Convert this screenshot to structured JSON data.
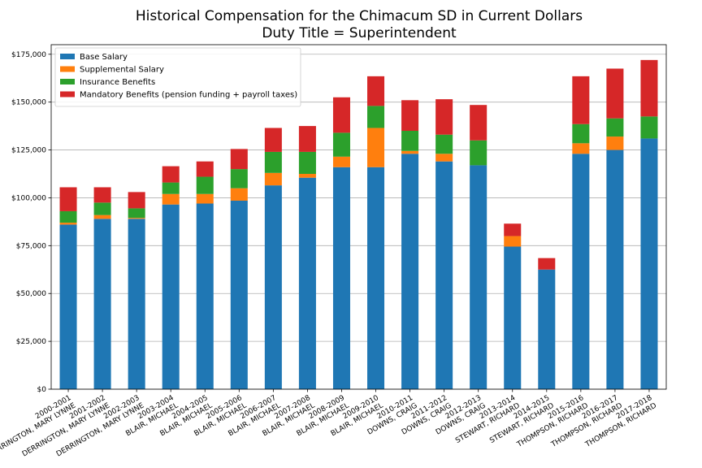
{
  "chart_data": {
    "type": "bar",
    "stacked": true,
    "title": "Historical Compensation for the Chimacum SD in Current Dollars",
    "subtitle": "Duty Title = Superintendent",
    "xlabel": "",
    "ylabel": "",
    "ylim": [
      0,
      180000
    ],
    "yticks": [
      "$0",
      "$25,000",
      "$50,000",
      "$75,000",
      "$100,000",
      "$125,000",
      "$150,000",
      "$175,000"
    ],
    "ytick_values": [
      0,
      25000,
      50000,
      75000,
      100000,
      125000,
      150000,
      175000
    ],
    "grid": "horizontal",
    "legend_position": "top-left",
    "categories": [
      [
        "2000-2001",
        "DERRINGTON, MARY LYNNE"
      ],
      [
        "2001-2002",
        "DERRINGTON, MARY LYNNE"
      ],
      [
        "2002-2003",
        "DERRINGTON, MARY LYNNE"
      ],
      [
        "2003-2004",
        "BLAIR, MICHAEL"
      ],
      [
        "2004-2005",
        "BLAIR, MICHAEL"
      ],
      [
        "2005-2006",
        "BLAIR, MICHAEL"
      ],
      [
        "2006-2007",
        "BLAIR, MICHAEL"
      ],
      [
        "2007-2008",
        "BLAIR, MICHAEL"
      ],
      [
        "2008-2009",
        "BLAIR, MICHAEL"
      ],
      [
        "2009-2010",
        "BLAIR, MICHAEL"
      ],
      [
        "2010-2011",
        "DOWNS, CRAIG"
      ],
      [
        "2011-2012",
        "DOWNS, CRAIG"
      ],
      [
        "2012-2013",
        "DOWNS, CRAIG"
      ],
      [
        "2013-2014",
        "STEWART, RICHARD"
      ],
      [
        "2014-2015",
        "STEWART, RICHARD"
      ],
      [
        "2015-2016",
        "THOMPSON, RICHARD"
      ],
      [
        "2016-2017",
        "THOMPSON, RICHARD"
      ],
      [
        "2017-2018",
        "THOMPSON, RICHARD"
      ]
    ],
    "series": [
      {
        "name": "Base Salary",
        "color": "#1f77b4",
        "values": [
          86000,
          89000,
          89000,
          96500,
          97000,
          98500,
          106500,
          110500,
          116000,
          116000,
          123000,
          119000,
          117000,
          74500,
          62500,
          123000,
          125000,
          131000
        ]
      },
      {
        "name": "Supplemental Salary",
        "color": "#ff7f0e",
        "values": [
          1000,
          2000,
          500,
          5500,
          5000,
          6500,
          6500,
          2000,
          5500,
          20500,
          1500,
          4000,
          0,
          5500,
          0,
          5500,
          7000,
          0
        ]
      },
      {
        "name": "Insurance Benefits",
        "color": "#2ca02c",
        "values": [
          6000,
          6500,
          5000,
          6000,
          9000,
          10000,
          11000,
          11500,
          12500,
          11500,
          10500,
          10000,
          13000,
          0,
          0,
          10000,
          9500,
          11500
        ]
      },
      {
        "name": "Mandatory Benefits (pension funding + payroll taxes)",
        "color": "#d62728",
        "values": [
          12500,
          8000,
          8500,
          8500,
          8000,
          10500,
          12500,
          13500,
          18500,
          15500,
          16000,
          18500,
          18500,
          6500,
          6000,
          25000,
          26000,
          29500
        ]
      }
    ]
  }
}
